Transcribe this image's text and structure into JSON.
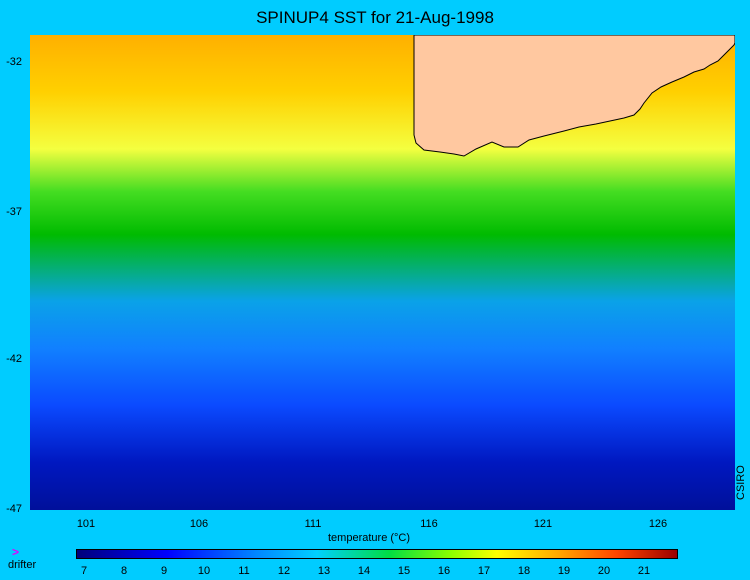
{
  "title": "SPINUP4 SST for 21-Aug-1998",
  "map": {
    "y_ticks": [
      "-32",
      "-37",
      "-42",
      "-47"
    ],
    "x_ticks": [
      "101",
      "106",
      "111",
      "116",
      "121",
      "126"
    ],
    "x_axis_label": "temperature (°C)",
    "watermark": "CSIRO"
  },
  "colorbar": {
    "ticks": [
      "7",
      "8",
      "9",
      "10",
      "11",
      "12",
      "13",
      "14",
      "15",
      "16",
      "17",
      "18",
      "19",
      "20",
      "21"
    ],
    "legend_item": "drifter"
  },
  "colors": {
    "background": "#00ccff",
    "land": "#ffc8a0",
    "drifter": "#e000ff"
  },
  "icons": {
    "drifter": "chevron-right-icon"
  }
}
